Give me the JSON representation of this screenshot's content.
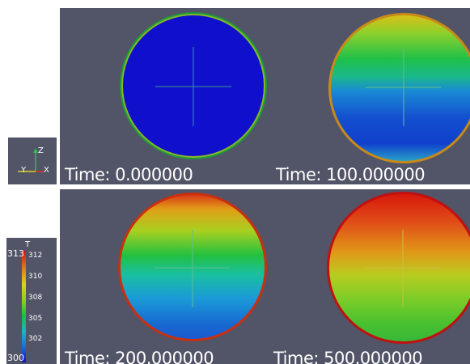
{
  "colors": {
    "background": "#525467",
    "cold": "#1010cc",
    "hot": "#d81a10"
  },
  "orientation_axes": {
    "z_label": "Z",
    "y_label": "Y",
    "x_label": "X"
  },
  "color_legend": {
    "title": "T",
    "range_min": "300",
    "range_max": "313",
    "ticks": [
      "312",
      "310",
      "308",
      "305",
      "302"
    ],
    "colormap": "rainbow"
  },
  "panels": [
    {
      "id": "t0",
      "time_label": "Time: 0.000000",
      "state": "uniform-cold"
    },
    {
      "id": "t100",
      "time_label": "Time: 100.000000",
      "state": "early-heating"
    },
    {
      "id": "t200",
      "time_label": "Time: 200.000000",
      "state": "mid-heating"
    },
    {
      "id": "t500",
      "time_label": "Time: 500.000000",
      "state": "late-heating"
    }
  ]
}
